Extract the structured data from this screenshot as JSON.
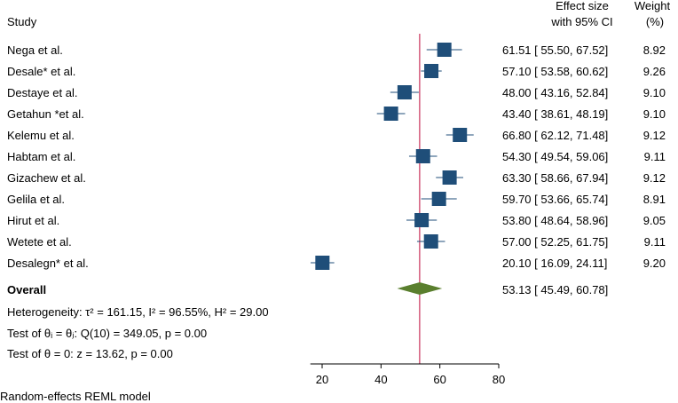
{
  "chart_data": {
    "type": "forest",
    "headers": {
      "study": "Study",
      "effect_line1": "Effect size",
      "effect_line2": "with 95% CI",
      "weight_line1": "Weight",
      "weight_line2": "(%)"
    },
    "studies": [
      {
        "name": "Nega et al.",
        "effect": 61.51,
        "lower": 55.5,
        "upper": 67.52,
        "weight": 8.92,
        "ci_text": "61.51 [ 55.50,  67.52]",
        "weight_text": "8.92"
      },
      {
        "name": "Desale*  et al.",
        "effect": 57.1,
        "lower": 53.58,
        "upper": 60.62,
        "weight": 9.26,
        "ci_text": "57.10 [ 53.58,  60.62]",
        "weight_text": "9.26"
      },
      {
        "name": "Destaye et al.",
        "effect": 48.0,
        "lower": 43.16,
        "upper": 52.84,
        "weight": 9.1,
        "ci_text": "48.00 [ 43.16,  52.84]",
        "weight_text": "9.10"
      },
      {
        "name": "Getahun *et al.",
        "effect": 43.4,
        "lower": 38.61,
        "upper": 48.19,
        "weight": 9.1,
        "ci_text": "43.40 [ 38.61,  48.19]",
        "weight_text": "9.10"
      },
      {
        "name": "Kelemu et al.",
        "effect": 66.8,
        "lower": 62.12,
        "upper": 71.48,
        "weight": 9.12,
        "ci_text": "66.80 [ 62.12,  71.48]",
        "weight_text": "9.12"
      },
      {
        "name": "Habtam et al.",
        "effect": 54.3,
        "lower": 49.54,
        "upper": 59.06,
        "weight": 9.11,
        "ci_text": "54.30 [ 49.54,  59.06]",
        "weight_text": "9.11"
      },
      {
        "name": "Gizachew et al.",
        "effect": 63.3,
        "lower": 58.66,
        "upper": 67.94,
        "weight": 9.12,
        "ci_text": "63.30 [ 58.66,  67.94]",
        "weight_text": "9.12"
      },
      {
        "name": "Gelila et al.",
        "effect": 59.7,
        "lower": 53.66,
        "upper": 65.74,
        "weight": 8.91,
        "ci_text": "59.70 [ 53.66,  65.74]",
        "weight_text": "8.91"
      },
      {
        "name": "Hirut et al.",
        "effect": 53.8,
        "lower": 48.64,
        "upper": 58.96,
        "weight": 9.05,
        "ci_text": "53.80 [ 48.64,  58.96]",
        "weight_text": "9.05"
      },
      {
        "name": "Wetete et al.",
        "effect": 57.0,
        "lower": 52.25,
        "upper": 61.75,
        "weight": 9.11,
        "ci_text": "57.00 [ 52.25,  61.75]",
        "weight_text": "9.11"
      },
      {
        "name": "Desalegn*  et al.",
        "effect": 20.1,
        "lower": 16.09,
        "upper": 24.11,
        "weight": 9.2,
        "ci_text": "20.10 [ 16.09,  24.11]",
        "weight_text": "9.20"
      }
    ],
    "overall": {
      "label": "Overall",
      "effect": 53.13,
      "lower": 45.49,
      "upper": 60.78,
      "ci_text": "53.13 [ 45.49,  60.78]"
    },
    "stats": {
      "heterogeneity": "Heterogeneity: τ² = 161.15, I² = 96.55%, H² = 29.00",
      "test_equal": "Test of θᵢ = θⱼ: Q(10) = 349.05, p = 0.00",
      "test_zero": "Test of θ = 0: z = 13.62, p = 0.00"
    },
    "footnote": "Random-effects REML model",
    "x_axis": {
      "ticks": [
        20,
        40,
        60,
        80
      ],
      "xlim": [
        16.0,
        80.0
      ]
    },
    "colors": {
      "square": "#1f4e79",
      "ci_line": "#1f4e79",
      "diamond": "#5a7f2e",
      "ref_line": "#c8325a",
      "axis": "#000000"
    }
  }
}
